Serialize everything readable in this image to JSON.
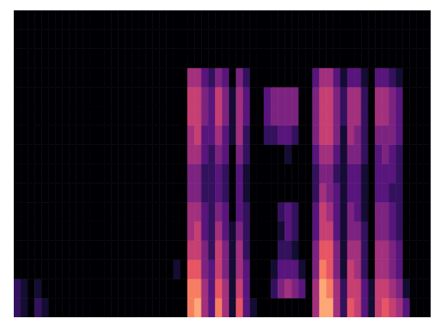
{
  "chart_data": {
    "type": "heatmap",
    "tick_labels": false,
    "grid": false,
    "xlim": [
      0,
      60
    ],
    "ylim": [
      0,
      16
    ],
    "z": [
      [
        2,
        1,
        0,
        2,
        1,
        0,
        0,
        0,
        0,
        0,
        0,
        0,
        0,
        0,
        0,
        0,
        0,
        0,
        0,
        0,
        0,
        0,
        0,
        0,
        0,
        8,
        9,
        5,
        3,
        8,
        5,
        1,
        7,
        3,
        1,
        0,
        0,
        0,
        0,
        0,
        0,
        0,
        0,
        5,
        9,
        9,
        5,
        2,
        7,
        6,
        3,
        1,
        6,
        7,
        6,
        5,
        3,
        0,
        0,
        0
      ],
      [
        2,
        1,
        0,
        1,
        0,
        0,
        0,
        0,
        0,
        0,
        0,
        0,
        0,
        0,
        0,
        0,
        0,
        0,
        0,
        0,
        0,
        0,
        0,
        0,
        0,
        8,
        8,
        5,
        3,
        7,
        5,
        1,
        6,
        3,
        0,
        0,
        0,
        2,
        4,
        5,
        4,
        3,
        0,
        5,
        9,
        8,
        5,
        2,
        6,
        6,
        3,
        1,
        6,
        6,
        5,
        4,
        1,
        0,
        0,
        0
      ],
      [
        0,
        0,
        0,
        0,
        0,
        0,
        0,
        0,
        0,
        0,
        0,
        0,
        0,
        0,
        0,
        0,
        0,
        0,
        0,
        0,
        0,
        0,
        0,
        1,
        0,
        7,
        7,
        4,
        3,
        6,
        4,
        1,
        5,
        3,
        0,
        0,
        0,
        1,
        3,
        3,
        3,
        1,
        0,
        4,
        8,
        7,
        4,
        1,
        6,
        5,
        2,
        0,
        5,
        5,
        4,
        3,
        0,
        0,
        0,
        0
      ],
      [
        0,
        0,
        0,
        0,
        0,
        0,
        0,
        0,
        0,
        0,
        0,
        0,
        0,
        0,
        0,
        0,
        0,
        0,
        0,
        0,
        0,
        0,
        0,
        0,
        0,
        6,
        6,
        4,
        2,
        6,
        4,
        1,
        5,
        2,
        0,
        0,
        0,
        0,
        2,
        2,
        1,
        0,
        0,
        4,
        7,
        7,
        4,
        1,
        5,
        5,
        2,
        0,
        5,
        5,
        4,
        3,
        0,
        0,
        0,
        0
      ],
      [
        0,
        0,
        0,
        0,
        0,
        0,
        0,
        0,
        0,
        0,
        0,
        0,
        0,
        0,
        0,
        0,
        0,
        0,
        0,
        0,
        0,
        0,
        0,
        0,
        0,
        5,
        6,
        3,
        2,
        5,
        3,
        1,
        4,
        2,
        0,
        0,
        0,
        0,
        1,
        3,
        2,
        0,
        0,
        3,
        6,
        6,
        3,
        1,
        4,
        4,
        2,
        0,
        4,
        4,
        3,
        2,
        0,
        0,
        0,
        0
      ],
      [
        0,
        0,
        0,
        0,
        0,
        0,
        0,
        0,
        0,
        0,
        0,
        0,
        0,
        0,
        0,
        0,
        0,
        0,
        0,
        0,
        0,
        0,
        0,
        0,
        0,
        5,
        5,
        3,
        2,
        4,
        3,
        0,
        3,
        2,
        0,
        0,
        0,
        0,
        2,
        3,
        2,
        0,
        0,
        3,
        6,
        5,
        3,
        1,
        4,
        3,
        1,
        0,
        4,
        4,
        3,
        2,
        0,
        0,
        0,
        0
      ],
      [
        0,
        0,
        0,
        0,
        0,
        0,
        0,
        0,
        0,
        0,
        0,
        0,
        0,
        0,
        0,
        0,
        0,
        0,
        0,
        0,
        0,
        0,
        0,
        0,
        0,
        4,
        4,
        2,
        2,
        3,
        2,
        0,
        3,
        1,
        0,
        0,
        0,
        0,
        0,
        0,
        0,
        0,
        0,
        2,
        5,
        4,
        3,
        1,
        3,
        3,
        1,
        0,
        3,
        3,
        2,
        2,
        0,
        0,
        0,
        0
      ],
      [
        0,
        0,
        0,
        0,
        0,
        0,
        0,
        0,
        0,
        0,
        0,
        0,
        0,
        0,
        0,
        0,
        0,
        0,
        0,
        0,
        0,
        0,
        0,
        0,
        0,
        4,
        4,
        2,
        2,
        3,
        2,
        0,
        3,
        1,
        0,
        0,
        0,
        0,
        0,
        0,
        0,
        0,
        0,
        2,
        4,
        4,
        2,
        1,
        3,
        3,
        1,
        0,
        3,
        3,
        3,
        2,
        0,
        0,
        0,
        0
      ],
      [
        0,
        0,
        0,
        0,
        0,
        0,
        0,
        0,
        0,
        0,
        0,
        0,
        0,
        0,
        0,
        0,
        0,
        0,
        0,
        0,
        0,
        0,
        0,
        0,
        0,
        5,
        5,
        3,
        2,
        4,
        3,
        0,
        4,
        2,
        0,
        0,
        0,
        0,
        0,
        1,
        0,
        0,
        0,
        3,
        5,
        5,
        3,
        1,
        4,
        4,
        2,
        0,
        3,
        4,
        3,
        2,
        0,
        0,
        0,
        0
      ],
      [
        0,
        0,
        0,
        0,
        0,
        0,
        0,
        0,
        0,
        0,
        0,
        0,
        0,
        0,
        0,
        0,
        0,
        0,
        0,
        0,
        0,
        0,
        0,
        0,
        0,
        5,
        6,
        3,
        3,
        5,
        3,
        1,
        5,
        2,
        0,
        0,
        2,
        2,
        3,
        3,
        2,
        0,
        0,
        4,
        6,
        6,
        4,
        1,
        5,
        4,
        2,
        0,
        4,
        4,
        4,
        3,
        0,
        0,
        0,
        0
      ],
      [
        0,
        0,
        0,
        0,
        0,
        0,
        0,
        0,
        0,
        0,
        0,
        0,
        0,
        0,
        0,
        0,
        0,
        0,
        0,
        0,
        0,
        0,
        0,
        0,
        0,
        6,
        6,
        4,
        3,
        6,
        4,
        1,
        5,
        3,
        0,
        0,
        3,
        4,
        4,
        4,
        4,
        0,
        0,
        4,
        6,
        6,
        4,
        2,
        5,
        5,
        2,
        0,
        5,
        5,
        4,
        3,
        0,
        0,
        0,
        0
      ],
      [
        0,
        0,
        0,
        0,
        0,
        0,
        0,
        0,
        0,
        0,
        0,
        0,
        0,
        0,
        0,
        0,
        0,
        0,
        0,
        0,
        0,
        0,
        0,
        0,
        0,
        6,
        6,
        4,
        3,
        6,
        4,
        1,
        5,
        3,
        0,
        0,
        3,
        4,
        4,
        4,
        4,
        0,
        0,
        4,
        6,
        6,
        4,
        2,
        5,
        5,
        2,
        0,
        5,
        5,
        4,
        3,
        0,
        0,
        0,
        0
      ],
      [
        0,
        0,
        0,
        0,
        0,
        0,
        0,
        0,
        0,
        0,
        0,
        0,
        0,
        0,
        0,
        0,
        0,
        0,
        0,
        0,
        0,
        0,
        0,
        0,
        0,
        5,
        5,
        3,
        2,
        4,
        3,
        0,
        4,
        2,
        0,
        0,
        0,
        0,
        0,
        0,
        0,
        0,
        0,
        3,
        5,
        5,
        3,
        1,
        3,
        3,
        1,
        0,
        3,
        3,
        2,
        1,
        0,
        0,
        0,
        0
      ],
      [
        0,
        0,
        0,
        0,
        0,
        0,
        0,
        0,
        0,
        0,
        0,
        0,
        0,
        0,
        0,
        0,
        0,
        0,
        0,
        0,
        0,
        0,
        0,
        0,
        0,
        0,
        0,
        0,
        0,
        0,
        0,
        0,
        0,
        0,
        0,
        0,
        0,
        0,
        0,
        0,
        0,
        0,
        0,
        0,
        0,
        0,
        0,
        0,
        0,
        0,
        0,
        0,
        0,
        0,
        0,
        0,
        0,
        0,
        0,
        0
      ],
      [
        0,
        0,
        0,
        0,
        0,
        0,
        0,
        0,
        0,
        0,
        0,
        0,
        0,
        0,
        0,
        0,
        0,
        0,
        0,
        0,
        0,
        0,
        0,
        0,
        0,
        0,
        0,
        0,
        0,
        0,
        0,
        0,
        0,
        0,
        0,
        0,
        0,
        0,
        0,
        0,
        0,
        0,
        0,
        0,
        0,
        0,
        0,
        0,
        0,
        0,
        0,
        0,
        0,
        0,
        0,
        0,
        0,
        0,
        0,
        0
      ],
      [
        0,
        0,
        0,
        0,
        0,
        0,
        0,
        0,
        0,
        0,
        0,
        0,
        0,
        0,
        0,
        0,
        0,
        0,
        0,
        0,
        0,
        0,
        0,
        0,
        0,
        0,
        0,
        0,
        0,
        0,
        0,
        0,
        0,
        0,
        0,
        0,
        0,
        0,
        0,
        0,
        0,
        0,
        0,
        0,
        0,
        0,
        0,
        0,
        0,
        0,
        0,
        0,
        0,
        0,
        0,
        0,
        0,
        0,
        0,
        0
      ]
    ]
  }
}
